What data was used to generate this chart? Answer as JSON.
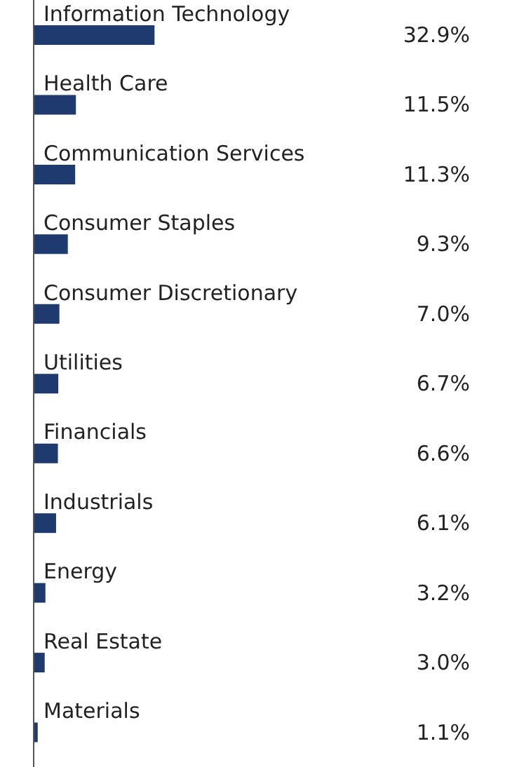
{
  "chart_data": {
    "type": "bar",
    "orientation": "horizontal",
    "categories": [
      "Information Technology",
      "Health Care",
      "Communication Services",
      "Consumer Staples",
      "Consumer Discretionary",
      "Utilities",
      "Financials",
      "Industrials",
      "Energy",
      "Real Estate",
      "Materials"
    ],
    "values": [
      32.9,
      11.5,
      11.3,
      9.3,
      7.0,
      6.7,
      6.6,
      6.1,
      3.2,
      3.0,
      1.1
    ],
    "value_labels": [
      "32.9%",
      "11.5%",
      "11.3%",
      "9.3%",
      "7.0%",
      "6.7%",
      "6.6%",
      "6.1%",
      "3.2%",
      "3.0%",
      "1.1%"
    ],
    "color": "#1f3a6e"
  }
}
